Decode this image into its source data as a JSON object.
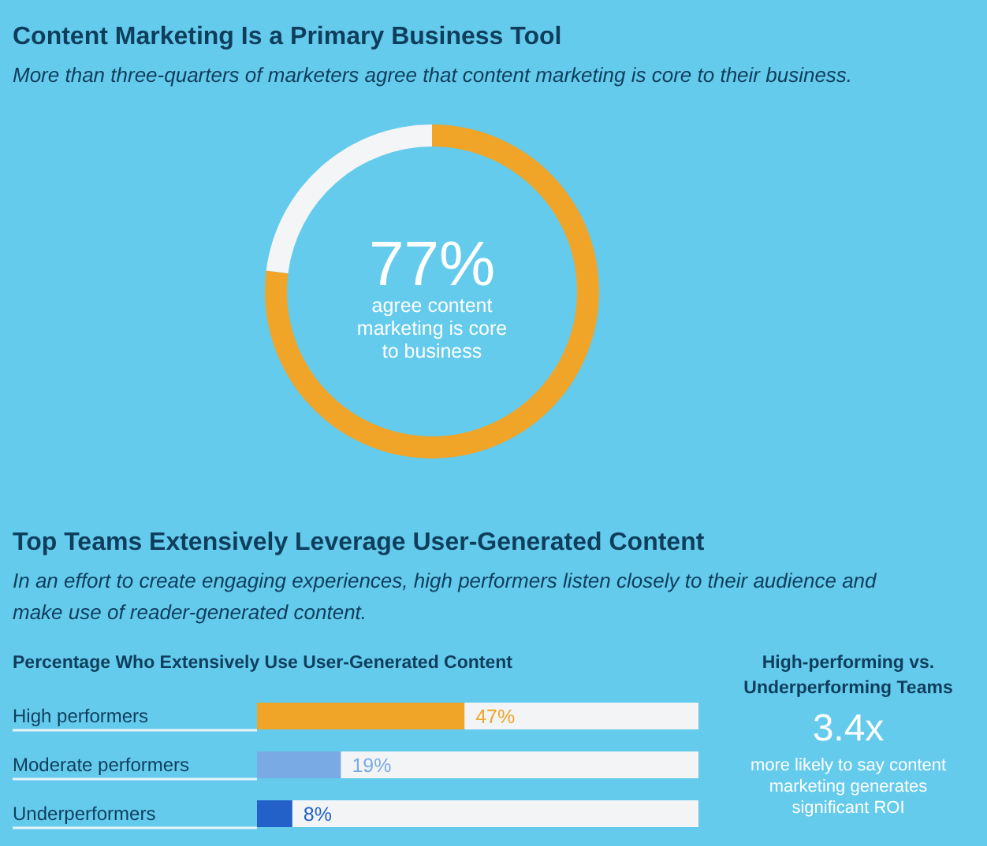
{
  "chart_data": [
    {
      "type": "donut",
      "title": "Content Marketing Is a Primary Business Tool",
      "subtitle": "More than three-quarters of marketers agree that content marketing is core to their business.",
      "categories": [
        "agree content marketing is core to business",
        null
      ],
      "values": [
        77,
        23
      ],
      "colors": [
        "#f0a428",
        "#f3f5f7"
      ],
      "value_labels": [
        "77%",
        null
      ]
    },
    {
      "type": "bar",
      "orientation": "horizontal",
      "title": "Top Teams Extensively Leverage User-Generated Content",
      "subtitle": "In an effort to create engaging experiences, high performers listen closely to their audience and make use of reader-generated content.",
      "annotations": [
        "Percentage Who Extensively Use User-Generated Content"
      ],
      "categories": [
        "High performers",
        "Moderate performers",
        "Underperformers"
      ],
      "values": [
        47,
        19,
        8
      ],
      "colors": [
        "#f0a428",
        "#7aaae4",
        "#2361c9"
      ],
      "value_labels": [
        "47%",
        "19%",
        "8%"
      ],
      "xlim": [
        0,
        100
      ],
      "tick_labels": "y"
    },
    {
      "type": "other",
      "title": "High-performing vs. Underperforming Teams",
      "annotations": [
        "3.4x",
        "more likely to say content marketing generates significant ROI"
      ]
    }
  ]
}
